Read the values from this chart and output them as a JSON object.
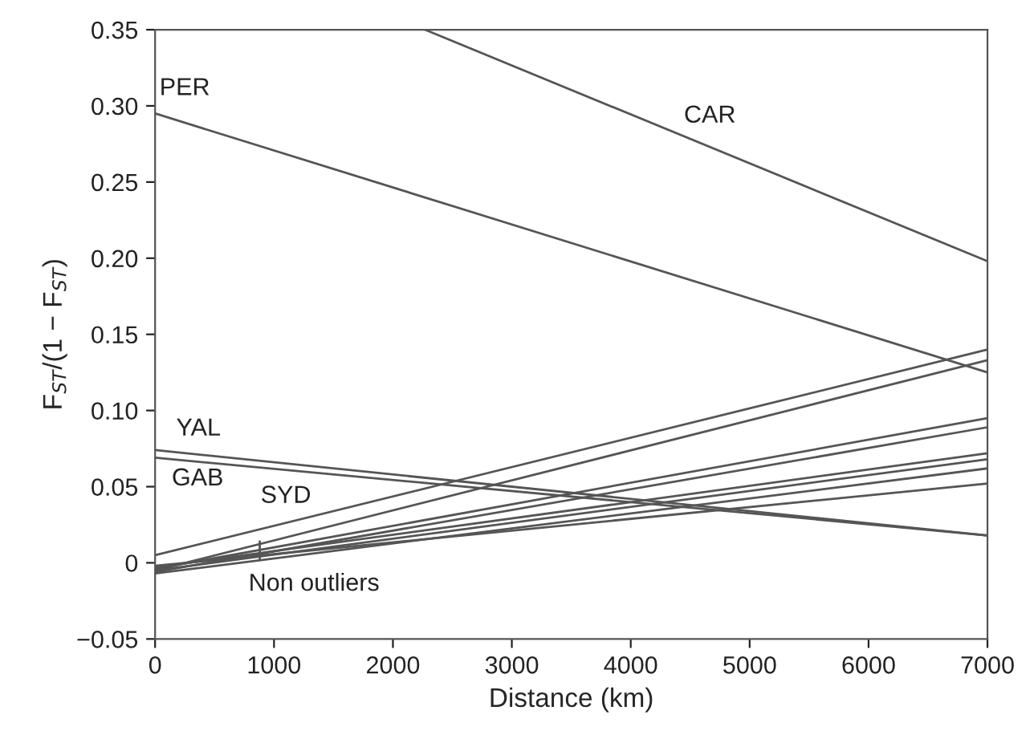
{
  "chart_data": {
    "type": "line",
    "xlabel": "Distance (km)",
    "ylabel": "F$_{ST}$/(1 − F$_{ST}$)",
    "xlim": [
      0,
      7000
    ],
    "xticks": [
      0,
      1000,
      2000,
      3000,
      4000,
      5000,
      6000,
      7000
    ],
    "ylim": [
      -0.05,
      0.35
    ],
    "yticks": [
      {
        "value": -0.05,
        "label": "−0.05"
      },
      0,
      0.05,
      {
        "value": 0.1,
        "label": "0.10"
      },
      0.15,
      {
        "value": 0.2,
        "label": "0.20"
      },
      0.25,
      {
        "value": 0.3,
        "label": "0.30"
      },
      0.35
    ],
    "grid": false,
    "legend": false,
    "marker": "none",
    "line_style": "solid",
    "series": [
      {
        "name": "CAR",
        "color": "#555555",
        "x": [
          2270,
          7000
        ],
        "values": [
          0.35,
          0.198
        ]
      },
      {
        "name": "PER",
        "color": "#555555",
        "x": [
          0,
          7000
        ],
        "values": [
          0.295,
          0.125
        ]
      },
      {
        "name": "YAL",
        "color": "#555555",
        "x": [
          0,
          7000
        ],
        "values": [
          0.074,
          0.018
        ]
      },
      {
        "name": "GAB",
        "color": "#555555",
        "x": [
          0,
          7000
        ],
        "values": [
          0.069,
          0.018
        ]
      },
      {
        "name": "SYD",
        "color": "#555555",
        "x": [
          0,
          7000
        ],
        "values": [
          0.005,
          0.14
        ]
      },
      {
        "color": "#555555",
        "x": [
          0,
          7000
        ],
        "values": [
          -0.005,
          0.133
        ]
      },
      {
        "color": "#555555",
        "x": [
          0,
          7000
        ],
        "values": [
          -0.004,
          0.095
        ]
      },
      {
        "color": "#555555",
        "x": [
          0,
          7000
        ],
        "values": [
          -0.006,
          0.089
        ]
      },
      {
        "color": "#555555",
        "x": [
          0,
          7000
        ],
        "values": [
          -0.003,
          0.072
        ]
      },
      {
        "color": "#555555",
        "x": [
          0,
          7000
        ],
        "values": [
          -0.005,
          0.068
        ]
      },
      {
        "color": "#555555",
        "x": [
          0,
          7000
        ],
        "values": [
          -0.007,
          0.062
        ]
      },
      {
        "color": "#555555",
        "x": [
          0,
          7000
        ],
        "values": [
          -0.002,
          0.052
        ]
      }
    ],
    "annotations": [
      {
        "text": "Non outliers",
        "x": 880,
        "y": 0.008
      }
    ]
  }
}
